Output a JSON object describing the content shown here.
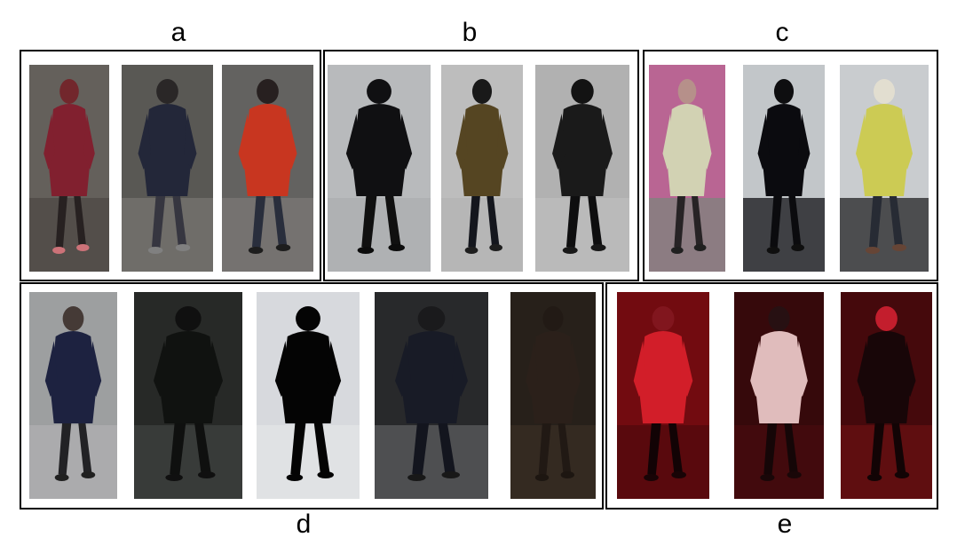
{
  "figure": {
    "groups": [
      {
        "label": "a",
        "photos": [
          {
            "scene": "person-red-hood-jacket",
            "bg": "#6b6661",
            "floor": "#56504c",
            "coat": "#8a2232",
            "pants": "#2a2424",
            "head": "#7a2a2f",
            "shoes": "#d97a80"
          },
          {
            "scene": "person-dark-jacket-carrying-bag",
            "bg": "#5f5e5a",
            "floor": "#7a7874",
            "coat": "#262a3d",
            "pants": "#3a3a44",
            "head": "#2d2a2a",
            "shoes": "#888"
          },
          {
            "scene": "person-orange-jacket",
            "bg": "#6a6966",
            "floor": "#807e7a",
            "coat": "#d53a22",
            "pants": "#2c3140",
            "head": "#2a2322",
            "shoes": "#1f1f1f"
          }
        ]
      },
      {
        "label": "b",
        "photos": [
          {
            "scene": "person-black-hooded-coat",
            "bg": "#c4c6c8",
            "floor": "#b9bbbd",
            "coat": "#121214",
            "pants": "#111",
            "head": "#121214",
            "shoes": "#0d0d0d"
          },
          {
            "scene": "person-olive-jacket",
            "bg": "#c9c9c9",
            "floor": "#c1c1c1",
            "coat": "#5b4a25",
            "pants": "#16181f",
            "head": "#1b1b1b",
            "shoes": "#202020"
          },
          {
            "scene": "person-black-coat-orange-scarf",
            "bg": "#bdbdbd",
            "floor": "#c8c8c8",
            "coat": "#1c1c1c",
            "pants": "#0f0f10",
            "head": "#151515",
            "shoes": "#1a1a1a"
          }
        ]
      },
      {
        "label": "c",
        "photos": [
          {
            "scene": "person-white-yellow-coat-doorway",
            "bg": "#c56c9d",
            "floor": "#8c8888",
            "coat": "#e0e0bf",
            "pants": "#2a2628",
            "head": "#c29a93",
            "shoes": "#222"
          },
          {
            "scene": "person-black-coat-entrance",
            "bg": "#cfd3d6",
            "floor": "#2a2c30",
            "coat": "#0c0c10",
            "pants": "#0c0c0f",
            "head": "#0f0f12",
            "shoes": "#101010"
          },
          {
            "scene": "person-yellow-puffer-fur-hood",
            "bg": "#d6d9dc",
            "floor": "#3a3a3c",
            "coat": "#d9d85a",
            "pants": "#2a2e38",
            "head": "#f1ecde",
            "shoes": "#6d4a3a"
          }
        ]
      },
      {
        "label": "d",
        "photos": [
          {
            "scene": "person-navy-coat-snow",
            "bg": "#a7a9ab",
            "floor": "#b8b9ba",
            "coat": "#1f2545",
            "pants": "#252528",
            "head": "#4a3e3a",
            "shoes": "#222"
          },
          {
            "scene": "person-dark-night-blue-light",
            "bg": "#2a2c2a",
            "floor": "#404341",
            "coat": "#121412",
            "pants": "#101110",
            "head": "#111",
            "shoes": "#111"
          },
          {
            "scene": "person-silhouette-snow",
            "bg": "#e5e7eb",
            "floor": "#f1f2f4",
            "coat": "#050505",
            "pants": "#050505",
            "head": "#050505",
            "shoes": "#050505"
          },
          {
            "scene": "person-dark-night-umbrella",
            "bg": "#2b2c2e",
            "floor": "#5b5c5e",
            "coat": "#1a1d29",
            "pants": "#151720",
            "head": "#1c1c1e",
            "shoes": "#1a1a1a"
          },
          {
            "scene": "person-dim-brown-night",
            "bg": "#2a221c",
            "floor": "#3b2f26",
            "coat": "#2e231c",
            "pants": "#241b16",
            "head": "#251c17",
            "shoes": "#1f1813"
          }
        ]
      },
      {
        "label": "e",
        "photos": [
          {
            "scene": "person-red-light-red-jacket",
            "bg": "#7a0c12",
            "floor": "#5a0a0e",
            "coat": "#e0202c",
            "pants": "#140406",
            "head": "#8a1820",
            "shoes": "#1a0507"
          },
          {
            "scene": "person-red-light-white-jacket-bag",
            "bg": "#3a0a0c",
            "floor": "#4a0c0f",
            "coat": "#efc8c8",
            "pants": "#170708",
            "head": "#2a1214",
            "shoes": "#1b0809"
          },
          {
            "scene": "person-red-light-dark-coat",
            "bg": "#4a0a0d",
            "floor": "#6a1014",
            "coat": "#1a0709",
            "pants": "#140506",
            "head": "#d02030",
            "shoes": "#140506"
          }
        ]
      }
    ]
  }
}
